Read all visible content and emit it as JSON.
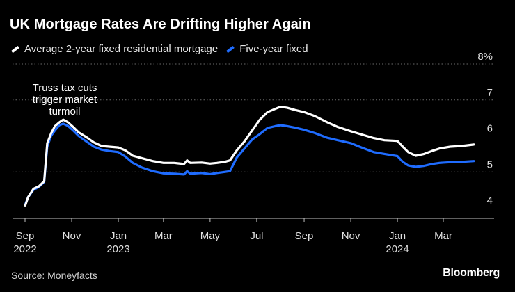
{
  "chart_data": {
    "type": "line",
    "title": "UK Mortgage Rates Are Drifting Higher Again",
    "subtitle": "",
    "source": "Source: Moneyfacts",
    "brand": "Bloomberg",
    "xlabel": "",
    "ylabel": "",
    "ylim": [
      4,
      8
    ],
    "xlim": [
      "2022-09-01",
      "2024-04-30"
    ],
    "grid": "horizontal-dotted",
    "legend_placement": "top-left",
    "y_ticks": [
      {
        "value": 4,
        "label": "4"
      },
      {
        "value": 5,
        "label": "5"
      },
      {
        "value": 6,
        "label": "6"
      },
      {
        "value": 7,
        "label": "7"
      },
      {
        "value": 8,
        "label": "8%"
      }
    ],
    "x_ticks": [
      {
        "date": "2022-09-01",
        "label": "Sep",
        "year": "2022"
      },
      {
        "date": "2022-11-01",
        "label": "Nov",
        "year": ""
      },
      {
        "date": "2023-01-01",
        "label": "Jan",
        "year": "2023"
      },
      {
        "date": "2023-03-01",
        "label": "Mar",
        "year": ""
      },
      {
        "date": "2023-05-01",
        "label": "May",
        "year": ""
      },
      {
        "date": "2023-07-01",
        "label": "Jul",
        "year": ""
      },
      {
        "date": "2023-09-01",
        "label": "Sep",
        "year": ""
      },
      {
        "date": "2023-11-01",
        "label": "Nov",
        "year": ""
      },
      {
        "date": "2024-01-01",
        "label": "Jan",
        "year": "2024"
      },
      {
        "date": "2024-03-01",
        "label": "Mar",
        "year": ""
      }
    ],
    "annotations": [
      {
        "lines": [
          "Truss tax cuts",
          "trigger market",
          "turmoil"
        ],
        "date": "2022-10-22",
        "value": 6.42
      }
    ],
    "series": [
      {
        "name": "Average 2-year fixed residential mortgage",
        "color": "#ffffff",
        "points": [
          [
            "2022-09-01",
            4.05
          ],
          [
            "2022-09-05",
            4.3
          ],
          [
            "2022-09-12",
            4.53
          ],
          [
            "2022-09-19",
            4.6
          ],
          [
            "2022-09-26",
            4.74
          ],
          [
            "2022-09-30",
            5.8
          ],
          [
            "2022-10-05",
            6.07
          ],
          [
            "2022-10-10",
            6.27
          ],
          [
            "2022-10-16",
            6.38
          ],
          [
            "2022-10-21",
            6.45
          ],
          [
            "2022-10-27",
            6.38
          ],
          [
            "2022-11-03",
            6.25
          ],
          [
            "2022-11-10",
            6.1
          ],
          [
            "2022-11-20",
            5.97
          ],
          [
            "2022-11-30",
            5.82
          ],
          [
            "2022-12-10",
            5.72
          ],
          [
            "2022-12-20",
            5.7
          ],
          [
            "2023-01-01",
            5.68
          ],
          [
            "2023-01-10",
            5.6
          ],
          [
            "2023-01-20",
            5.45
          ],
          [
            "2023-02-01",
            5.38
          ],
          [
            "2023-02-15",
            5.3
          ],
          [
            "2023-03-01",
            5.25
          ],
          [
            "2023-03-15",
            5.25
          ],
          [
            "2023-03-28",
            5.22
          ],
          [
            "2023-04-01",
            5.32
          ],
          [
            "2023-04-05",
            5.25
          ],
          [
            "2023-04-20",
            5.26
          ],
          [
            "2023-05-01",
            5.23
          ],
          [
            "2023-05-10",
            5.25
          ],
          [
            "2023-05-20",
            5.28
          ],
          [
            "2023-05-27",
            5.32
          ],
          [
            "2023-06-05",
            5.6
          ],
          [
            "2023-06-15",
            5.85
          ],
          [
            "2023-06-25",
            6.15
          ],
          [
            "2023-07-05",
            6.45
          ],
          [
            "2023-07-15",
            6.66
          ],
          [
            "2023-07-25",
            6.75
          ],
          [
            "2023-08-01",
            6.81
          ],
          [
            "2023-08-10",
            6.78
          ],
          [
            "2023-08-20",
            6.72
          ],
          [
            "2023-09-01",
            6.66
          ],
          [
            "2023-09-15",
            6.55
          ],
          [
            "2023-10-01",
            6.38
          ],
          [
            "2023-10-15",
            6.25
          ],
          [
            "2023-11-01",
            6.13
          ],
          [
            "2023-11-15",
            6.04
          ],
          [
            "2023-12-01",
            5.94
          ],
          [
            "2023-12-15",
            5.88
          ],
          [
            "2024-01-01",
            5.86
          ],
          [
            "2024-01-08",
            5.7
          ],
          [
            "2024-01-15",
            5.55
          ],
          [
            "2024-01-25",
            5.45
          ],
          [
            "2024-02-05",
            5.5
          ],
          [
            "2024-02-15",
            5.58
          ],
          [
            "2024-02-25",
            5.65
          ],
          [
            "2024-03-10",
            5.7
          ],
          [
            "2024-03-25",
            5.72
          ],
          [
            "2024-04-10",
            5.76
          ]
        ]
      },
      {
        "name": "Five-year fixed",
        "color": "#1f6cff",
        "points": [
          [
            "2022-09-01",
            4.08
          ],
          [
            "2022-09-05",
            4.3
          ],
          [
            "2022-09-12",
            4.5
          ],
          [
            "2022-09-19",
            4.58
          ],
          [
            "2022-09-26",
            4.72
          ],
          [
            "2022-09-30",
            5.7
          ],
          [
            "2022-10-05",
            6.0
          ],
          [
            "2022-10-10",
            6.15
          ],
          [
            "2022-10-16",
            6.3
          ],
          [
            "2022-10-21",
            6.34
          ],
          [
            "2022-10-27",
            6.28
          ],
          [
            "2022-11-03",
            6.15
          ],
          [
            "2022-11-10",
            6.0
          ],
          [
            "2022-11-20",
            5.85
          ],
          [
            "2022-11-30",
            5.7
          ],
          [
            "2022-12-10",
            5.62
          ],
          [
            "2022-12-20",
            5.58
          ],
          [
            "2023-01-01",
            5.55
          ],
          [
            "2023-01-10",
            5.43
          ],
          [
            "2023-01-20",
            5.25
          ],
          [
            "2023-02-01",
            5.12
          ],
          [
            "2023-02-15",
            5.02
          ],
          [
            "2023-03-01",
            4.96
          ],
          [
            "2023-03-15",
            4.95
          ],
          [
            "2023-03-28",
            4.93
          ],
          [
            "2023-04-01",
            5.02
          ],
          [
            "2023-04-05",
            4.95
          ],
          [
            "2023-04-20",
            4.97
          ],
          [
            "2023-05-01",
            4.94
          ],
          [
            "2023-05-10",
            4.97
          ],
          [
            "2023-05-20",
            5.0
          ],
          [
            "2023-05-27",
            5.02
          ],
          [
            "2023-06-05",
            5.4
          ],
          [
            "2023-06-15",
            5.65
          ],
          [
            "2023-06-25",
            5.9
          ],
          [
            "2023-07-05",
            6.05
          ],
          [
            "2023-07-15",
            6.22
          ],
          [
            "2023-07-25",
            6.27
          ],
          [
            "2023-08-01",
            6.3
          ],
          [
            "2023-08-10",
            6.27
          ],
          [
            "2023-08-20",
            6.23
          ],
          [
            "2023-09-01",
            6.17
          ],
          [
            "2023-09-15",
            6.08
          ],
          [
            "2023-10-01",
            5.95
          ],
          [
            "2023-10-15",
            5.88
          ],
          [
            "2023-11-01",
            5.8
          ],
          [
            "2023-11-15",
            5.68
          ],
          [
            "2023-12-01",
            5.55
          ],
          [
            "2023-12-15",
            5.5
          ],
          [
            "2024-01-01",
            5.44
          ],
          [
            "2024-01-08",
            5.28
          ],
          [
            "2024-01-15",
            5.18
          ],
          [
            "2024-01-25",
            5.14
          ],
          [
            "2024-02-05",
            5.17
          ],
          [
            "2024-02-15",
            5.22
          ],
          [
            "2024-02-25",
            5.25
          ],
          [
            "2024-03-10",
            5.27
          ],
          [
            "2024-03-25",
            5.28
          ],
          [
            "2024-04-10",
            5.3
          ]
        ]
      }
    ]
  }
}
